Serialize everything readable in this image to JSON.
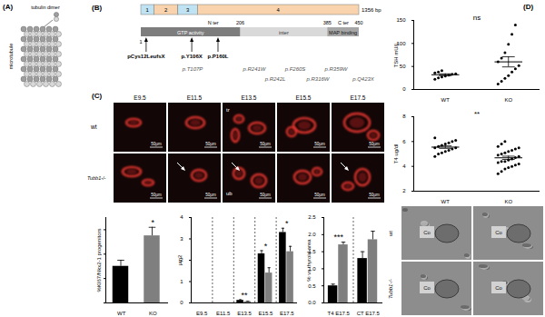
{
  "panels": {
    "A": {
      "label": "(A)",
      "dimer": "tubulin dimer",
      "tube": "microtubule"
    },
    "B": {
      "label": "(B)",
      "exons": [
        "1",
        "2",
        "3",
        "4"
      ],
      "length": "1356 bp",
      "positions": [
        1,
        206,
        385,
        450
      ],
      "domains": {
        "gtp": "GTP activity",
        "inter": "inter",
        "map": "MAP binding",
        "nter": "N ter",
        "cter": "C ter"
      },
      "mutations": [
        "pCys12LeufsX",
        "p.Y106X",
        "p.P160L"
      ],
      "variants": [
        "p.T107P",
        "p.R241W",
        "p.R242L",
        "p.F260S",
        "p.R316W",
        "p.R359W",
        "p.Q423X"
      ]
    },
    "C": {
      "label": "(C)",
      "stages": [
        "E9.5",
        "E11.5",
        "E13.5",
        "E15.5",
        "E17.5"
      ],
      "rows": [
        "wt",
        "Tubb1-/-"
      ],
      "scale_bar": "50µm",
      "structures": [
        "tr",
        "ub"
      ]
    },
    "D": {
      "label": "(D)",
      "rows": [
        "wt",
        "Tubb1-/-"
      ],
      "structure": "Co"
    }
  },
  "chart_data": [
    {
      "type": "bar",
      "ylabel": "%KI67/Nkx2-1 progenitors",
      "categories": [
        "WT",
        "KO"
      ],
      "values": [
        30,
        55
      ],
      "errors": [
        5,
        7
      ],
      "colors": [
        "#000000",
        "#7f7f7f"
      ],
      "ylim": [
        0,
        70
      ],
      "tick_labels": "x",
      "annotations": [
        {
          "category": "KO",
          "text": "*"
        }
      ]
    },
    {
      "type": "bar",
      "ylabel": "µm2",
      "categories": [
        "E9.5",
        "E11.5",
        "E13.5",
        "E15.5",
        "E17.5"
      ],
      "series": [
        {
          "color": "#000000",
          "values": [
            null,
            null,
            0.12,
            2.3,
            3.3
          ],
          "errors": [
            null,
            null,
            0.03,
            0.15,
            0.2
          ]
        },
        {
          "color": "#7f7f7f",
          "values": [
            null,
            null,
            0.06,
            1.4,
            2.4
          ],
          "errors": [
            null,
            null,
            0.02,
            0.25,
            0.25
          ]
        }
      ],
      "ylim": [
        0,
        4
      ],
      "yticks": [
        0,
        1,
        2,
        3,
        4
      ],
      "annotations": [
        {
          "category": "E13.5",
          "text": "**"
        },
        {
          "category": "E15.5",
          "text": "*"
        },
        {
          "category": "E17.5",
          "text": "*"
        }
      ]
    },
    {
      "type": "bar",
      "ylabel": "% vs thyroid area",
      "categories": [
        "T4 E17.5",
        "CT E17.5"
      ],
      "series": [
        {
          "color": "#000000",
          "values": [
            0.5,
            1.3
          ],
          "errors": [
            0.05,
            0.2
          ]
        },
        {
          "color": "#7f7f7f",
          "values": [
            1.7,
            1.85
          ],
          "errors": [
            0.08,
            0.25
          ]
        }
      ],
      "ylim": [
        0,
        2.5
      ],
      "yticks": [
        {
          "value": 0,
          "label": "0.0"
        },
        0.5,
        {
          "value": 1,
          "label": "1.0"
        },
        1.5,
        {
          "value": 2,
          "label": "2.0"
        },
        2.5
      ],
      "annotations": [
        {
          "category": "T4 E17.5",
          "text": "***"
        }
      ]
    },
    {
      "type": "scatter",
      "ylabel": "TSH mU/L",
      "categories": [
        "WT",
        "KO"
      ],
      "values": [
        [
          22,
          25,
          27,
          29,
          31,
          33,
          34,
          36,
          38,
          41
        ],
        [
          12,
          18,
          24,
          30,
          38,
          45,
          52,
          60,
          68,
          80,
          98,
          120,
          140
        ]
      ],
      "means": [
        32,
        60
      ],
      "errors": [
        2,
        11
      ],
      "color": "#000000",
      "ylim": [
        0,
        150
      ],
      "yticks": [
        0,
        50,
        100,
        150
      ],
      "annotations": [
        {
          "text": "ns"
        }
      ]
    },
    {
      "type": "scatter",
      "ylabel": "T4 ug/dl",
      "categories": [
        "WT",
        "KO"
      ],
      "values": [
        [
          4.8,
          5.0,
          5.1,
          5.2,
          5.3,
          5.4,
          5.5,
          5.5,
          5.6,
          5.7,
          5.8,
          5.9,
          6.0,
          6.1,
          6.3
        ],
        [
          3.4,
          3.6,
          3.8,
          3.9,
          4.0,
          4.1,
          4.2,
          4.3,
          4.4,
          4.4,
          4.5,
          4.6,
          4.7,
          4.8,
          4.9,
          5.0,
          5.1,
          5.2,
          5.3,
          5.4,
          5.5,
          5.6,
          5.8,
          6.0
        ]
      ],
      "means": [
        5.55,
        4.69
      ],
      "errors": [
        0.1,
        0.13
      ],
      "color": "#000000",
      "ylim": [
        2,
        8
      ],
      "yticks": [
        2,
        4,
        6,
        8
      ],
      "annotations": [
        {
          "text": "**"
        }
      ]
    }
  ]
}
